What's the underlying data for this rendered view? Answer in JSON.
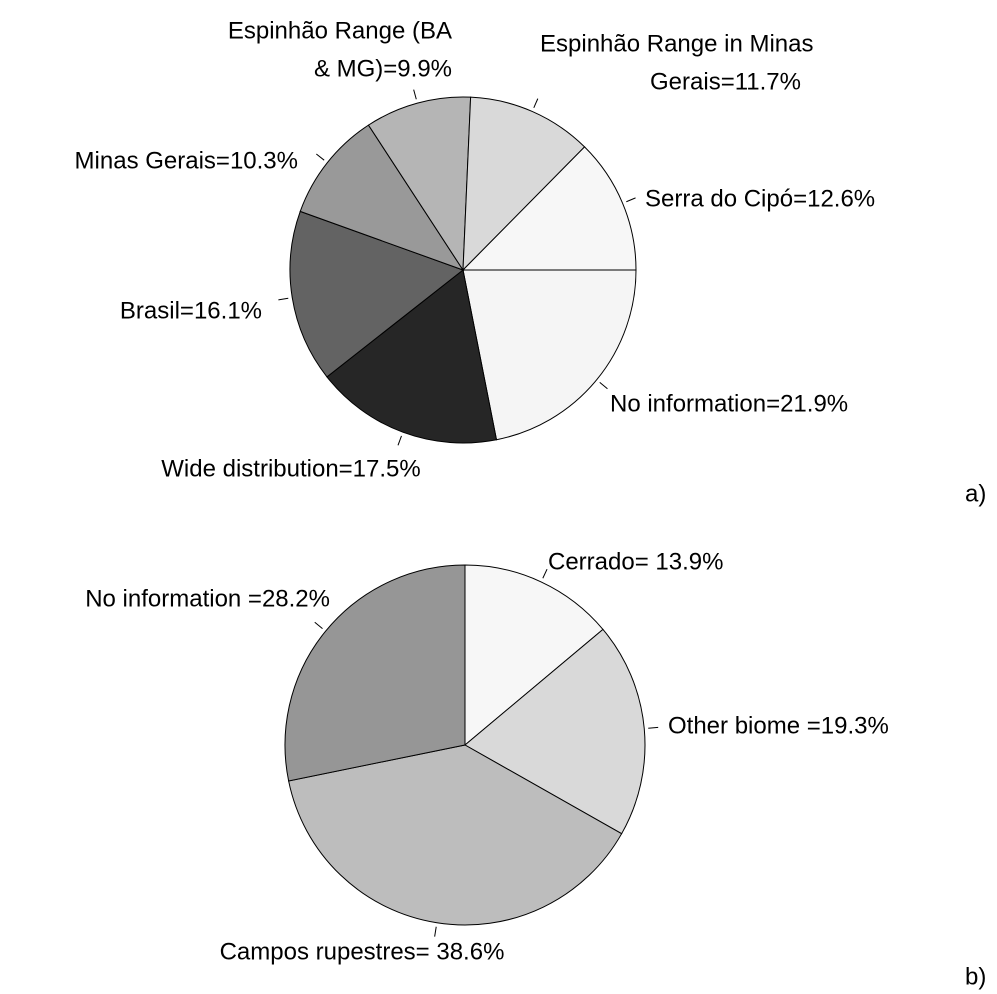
{
  "chart_data": [
    {
      "type": "pie",
      "panel_label": "a)",
      "start_angle": 90,
      "values": [
        21.9,
        17.5,
        16.1,
        10.3,
        9.9,
        11.7,
        12.6
      ],
      "value_labels": [
        [
          "No information=21.9%"
        ],
        [
          "Wide distribution=17.5%"
        ],
        [
          "Brasil=16.1%"
        ],
        [
          "Minas Gerais=10.3%"
        ],
        [
          "Espinhão Range (BA",
          "& MG)=9.9%"
        ],
        [
          "Espinhão Range in Minas",
          "Gerais=11.7%"
        ],
        [
          "Serra do Cipó=12.6%"
        ]
      ],
      "colors": [
        "#f5f5f5",
        "#262626",
        "#636363",
        "#999999",
        "#b5b5b5",
        "#d9d9d9",
        "#f7f7f7"
      ]
    },
    {
      "type": "pie",
      "panel_label": "b)",
      "start_angle": 0,
      "values": [
        13.9,
        19.3,
        38.6,
        28.2
      ],
      "value_labels": [
        [
          "Cerrado= 13.9%"
        ],
        [
          "Other biome =19.3%"
        ],
        [
          "Campos rupestres= 38.6%"
        ],
        [
          "No information =28.2%"
        ]
      ],
      "colors": [
        "#f7f7f7",
        "#d9d9d9",
        "#bdbdbd",
        "#969696"
      ]
    }
  ]
}
